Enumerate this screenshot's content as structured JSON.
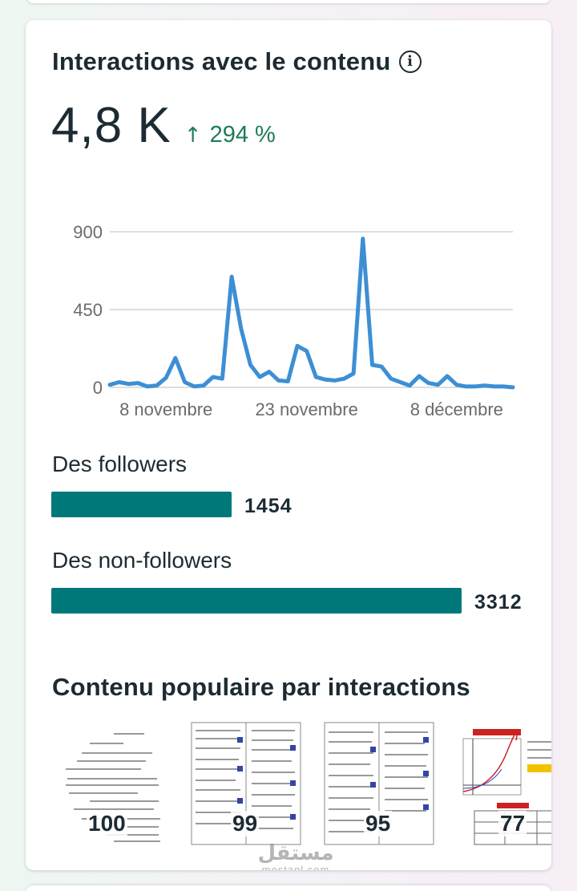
{
  "card": {
    "title": "Interactions avec le contenu",
    "info_icon": "info-icon",
    "metric_value": "4,8 K",
    "change_arrow": "↑",
    "change_text": "294 %",
    "change_color": "#1e7b55"
  },
  "chart_data": {
    "type": "line",
    "title": "",
    "xlabel": "",
    "ylabel": "",
    "ylim": [
      0,
      900
    ],
    "y_ticks": [
      "900",
      "450",
      "0"
    ],
    "x_ticks": [
      "8 novembre",
      "23 novembre",
      "8 décembre"
    ],
    "grid": true,
    "color": "#3d8fd4",
    "series": [
      {
        "values": [
          15,
          30,
          20,
          25,
          5,
          10,
          55,
          170,
          30,
          5,
          10,
          60,
          50,
          640,
          340,
          130,
          60,
          90,
          40,
          35,
          240,
          210,
          60,
          45,
          40,
          50,
          80,
          860,
          130,
          120,
          50,
          30,
          10,
          65,
          25,
          15,
          65,
          15,
          5,
          5,
          10,
          5,
          5,
          0
        ]
      }
    ]
  },
  "breakdown": {
    "followers_label": "Des followers",
    "followers_value": "1454",
    "followers_count": 1454,
    "non_followers_label": "Des non-followers",
    "non_followers_value": "3312",
    "non_followers_count": 3312,
    "bar_color": "#00787a"
  },
  "popular": {
    "title": "Contenu populaire par interactions",
    "items": [
      {
        "count": "100"
      },
      {
        "count": "99"
      },
      {
        "count": "95"
      },
      {
        "count": "77"
      }
    ]
  },
  "watermark": {
    "arabic": "مستقل",
    "latin": "mostaql.com"
  }
}
